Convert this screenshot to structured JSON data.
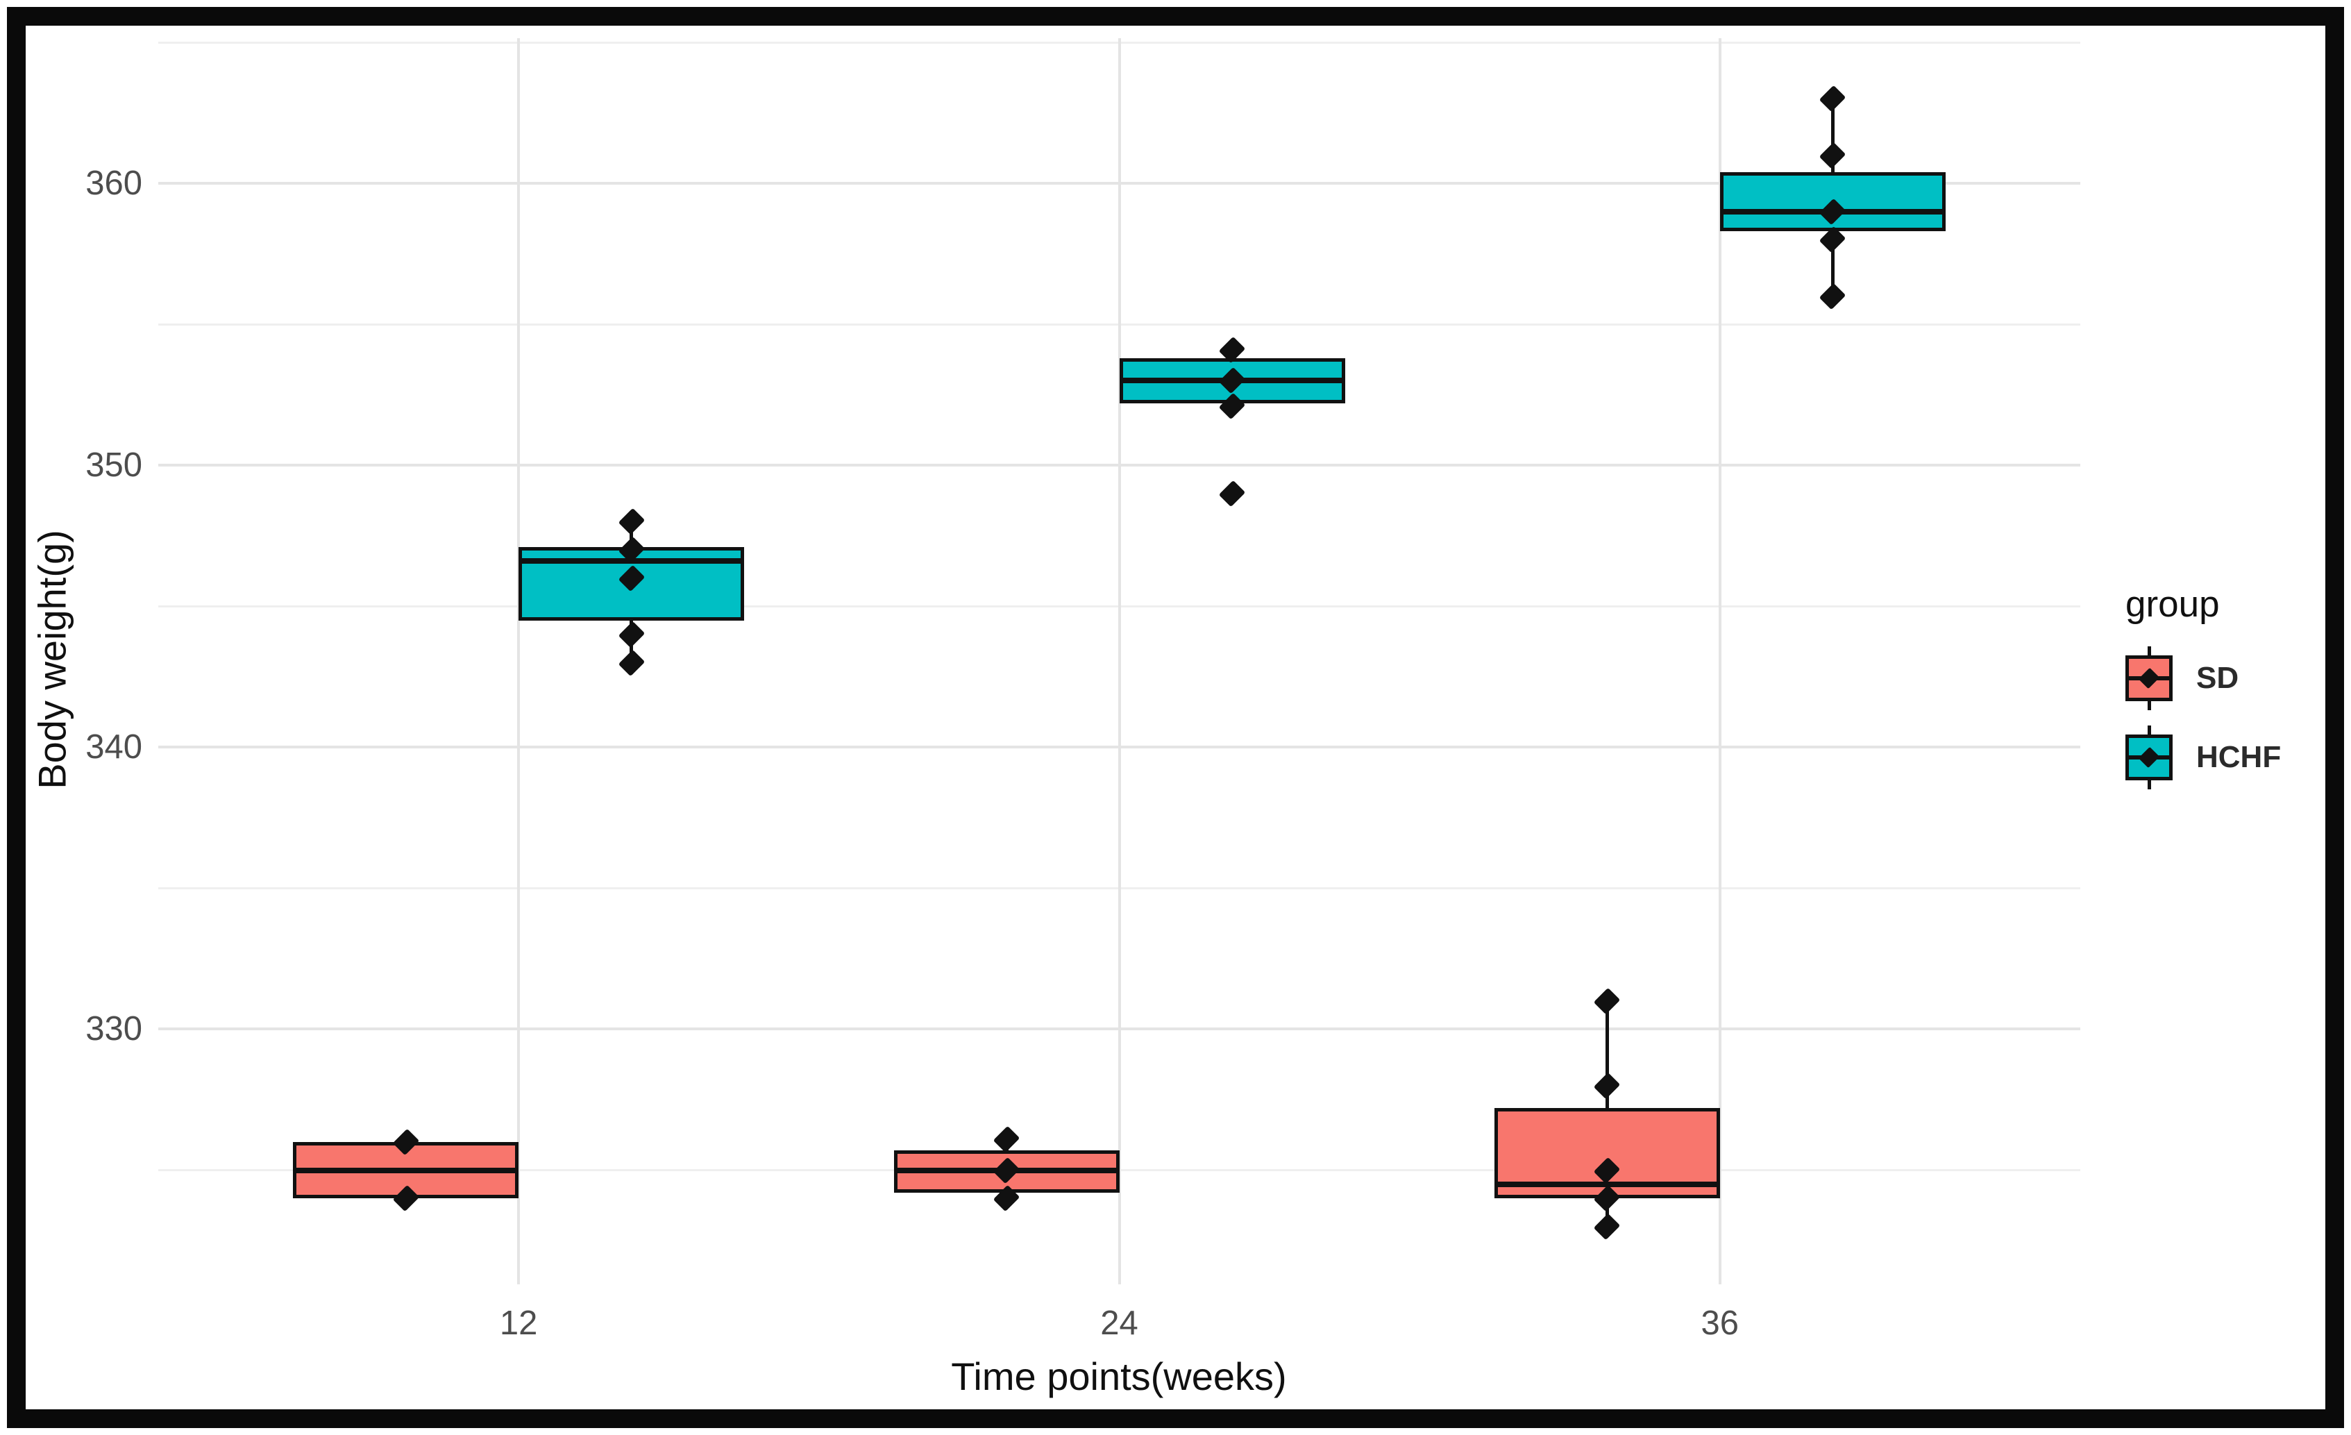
{
  "chart_data": {
    "type": "grouped_boxplot_with_points",
    "title": "",
    "x_label": "Time points(weeks)",
    "y_label": "Body weight(g)",
    "categories": [
      "12",
      "24",
      "36"
    ],
    "x_axis": {
      "label": "Time points(weeks)",
      "tick_labels": [
        "12",
        "24",
        "36"
      ]
    },
    "y_axis": {
      "label": "Body weight(g)",
      "min": 320.95,
      "max": 365.15,
      "major_ticks": [
        330,
        340,
        350,
        360
      ],
      "minor_ticks": [
        325,
        335,
        345,
        355,
        365
      ]
    },
    "legend": {
      "title": "group",
      "position": "right"
    },
    "grid": {
      "major_color": "#e4e4e4",
      "minor_color": "#efefef",
      "background": "#ffffff"
    },
    "series": [
      {
        "name": "SD",
        "color": "#F8766D",
        "boxes": [
          {
            "category": "12",
            "whisker_low": 324,
            "q1": 324.0,
            "median": 325.0,
            "q3": 326.0,
            "whisker_high": 326,
            "points": [
              326,
              324
            ],
            "outliers": []
          },
          {
            "category": "24",
            "whisker_low": 324,
            "q1": 324.2,
            "median": 325.0,
            "q3": 325.7,
            "whisker_high": 326.1,
            "points": [
              326.1,
              325,
              324
            ],
            "outliers": []
          },
          {
            "category": "36",
            "whisker_low": 323,
            "q1": 324.0,
            "median": 324.5,
            "q3": 327.2,
            "whisker_high": 331,
            "points": [
              331,
              328,
              325,
              324,
              323
            ],
            "outliers": []
          }
        ]
      },
      {
        "name": "HCHF",
        "color": "#00BFC4",
        "boxes": [
          {
            "category": "12",
            "whisker_low": 343,
            "q1": 344.5,
            "median": 346.6,
            "q3": 347.1,
            "whisker_high": 348,
            "points": [
              348,
              347,
              346,
              344,
              343
            ],
            "outliers": []
          },
          {
            "category": "24",
            "whisker_low": 352.1,
            "q1": 352.2,
            "median": 353.0,
            "q3": 353.8,
            "whisker_high": 354.1,
            "points": [
              354.1,
              353,
              352.1
            ],
            "outliers": [
              349
            ]
          },
          {
            "category": "36",
            "whisker_low": 356,
            "q1": 358.3,
            "median": 359.0,
            "q3": 360.4,
            "whisker_high": 363,
            "points": [
              363,
              361,
              359,
              358,
              356
            ],
            "outliers": []
          }
        ]
      }
    ]
  }
}
